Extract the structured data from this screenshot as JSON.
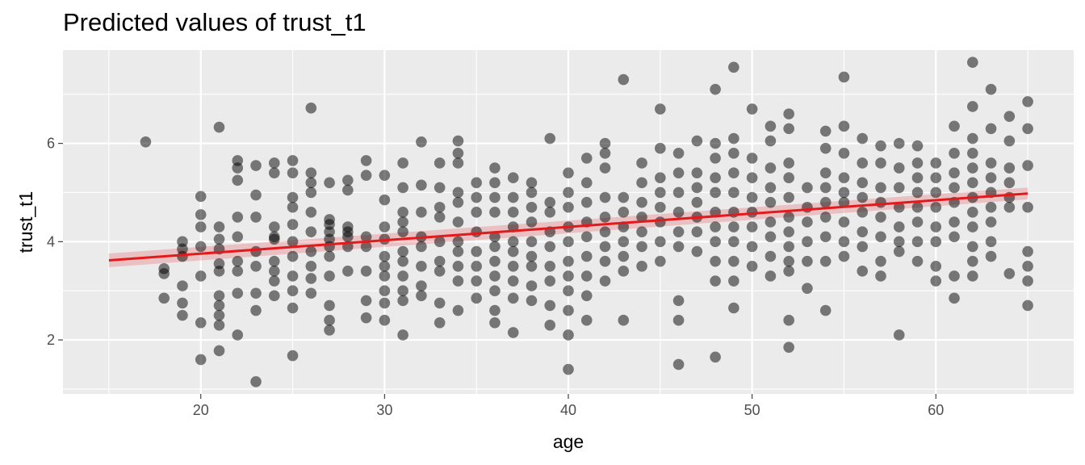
{
  "chart_data": {
    "type": "scatter",
    "title": "Predicted values of trust_t1",
    "xlabel": "age",
    "ylabel": "trust_t1",
    "xlim": [
      12.5,
      67.5
    ],
    "ylim": [
      0.9,
      7.9
    ],
    "x_ticks": [
      20,
      30,
      40,
      50,
      60
    ],
    "y_ticks": [
      2,
      4,
      6
    ],
    "grid": true,
    "background": "#ebebeb",
    "point_color": "#000000",
    "point_opacity": 0.5,
    "fit_line": {
      "color": "#e31a1c",
      "ci_color": "#e31a1c",
      "x": [
        15,
        65
      ],
      "y": [
        3.62,
        4.98
      ],
      "ci_lower": [
        3.48,
        4.86
      ],
      "ci_upper": [
        3.76,
        5.1
      ]
    },
    "points": [
      [
        17,
        6.03
      ],
      [
        18,
        2.85
      ],
      [
        18,
        3.35
      ],
      [
        18,
        3.45
      ],
      [
        19,
        2.5
      ],
      [
        19,
        2.75
      ],
      [
        19,
        3.1
      ],
      [
        19,
        3.7
      ],
      [
        19,
        3.85
      ],
      [
        19,
        4.0
      ],
      [
        20,
        1.6
      ],
      [
        20,
        2.35
      ],
      [
        20,
        3.3
      ],
      [
        20,
        3.9
      ],
      [
        20,
        4.3
      ],
      [
        20,
        4.55
      ],
      [
        20,
        4.92
      ],
      [
        21,
        1.78
      ],
      [
        21,
        2.3
      ],
      [
        21,
        2.5
      ],
      [
        21,
        2.7
      ],
      [
        21,
        2.9
      ],
      [
        21,
        3.4
      ],
      [
        21,
        3.55
      ],
      [
        21,
        3.85
      ],
      [
        21,
        4.05
      ],
      [
        21,
        4.3
      ],
      [
        21,
        6.33
      ],
      [
        22,
        2.1
      ],
      [
        22,
        2.95
      ],
      [
        22,
        3.4
      ],
      [
        22,
        3.6
      ],
      [
        22,
        4.1
      ],
      [
        22,
        4.5
      ],
      [
        22,
        5.25
      ],
      [
        22,
        5.5
      ],
      [
        22,
        5.65
      ],
      [
        23,
        1.15
      ],
      [
        23,
        2.6
      ],
      [
        23,
        2.95
      ],
      [
        23,
        3.5
      ],
      [
        23,
        3.8
      ],
      [
        23,
        4.5
      ],
      [
        23,
        4.95
      ],
      [
        23,
        5.55
      ],
      [
        24,
        2.9
      ],
      [
        24,
        3.2
      ],
      [
        24,
        3.4
      ],
      [
        24,
        3.6
      ],
      [
        24,
        4.05
      ],
      [
        24,
        4.1
      ],
      [
        24,
        4.3
      ],
      [
        24,
        5.4
      ],
      [
        24,
        5.6
      ],
      [
        25,
        1.68
      ],
      [
        25,
        2.65
      ],
      [
        25,
        3.0
      ],
      [
        25,
        3.3
      ],
      [
        25,
        3.7
      ],
      [
        25,
        4.0
      ],
      [
        25,
        4.35
      ],
      [
        25,
        4.7
      ],
      [
        25,
        4.9
      ],
      [
        25,
        5.4
      ],
      [
        25,
        5.65
      ],
      [
        26,
        2.95
      ],
      [
        26,
        3.25
      ],
      [
        26,
        3.5
      ],
      [
        26,
        3.8
      ],
      [
        26,
        4.2
      ],
      [
        26,
        4.6
      ],
      [
        26,
        5.0
      ],
      [
        26,
        5.2
      ],
      [
        26,
        5.4
      ],
      [
        26,
        6.72
      ],
      [
        27,
        2.2
      ],
      [
        27,
        2.4
      ],
      [
        27,
        2.7
      ],
      [
        27,
        3.3
      ],
      [
        27,
        3.7
      ],
      [
        27,
        3.9
      ],
      [
        27,
        4.05
      ],
      [
        27,
        4.2
      ],
      [
        27,
        4.35
      ],
      [
        27,
        4.45
      ],
      [
        27,
        5.2
      ],
      [
        28,
        3.4
      ],
      [
        28,
        3.9
      ],
      [
        28,
        4.1
      ],
      [
        28,
        4.2
      ],
      [
        28,
        4.3
      ],
      [
        28,
        5.05
      ],
      [
        28,
        5.25
      ],
      [
        29,
        2.45
      ],
      [
        29,
        2.8
      ],
      [
        29,
        3.4
      ],
      [
        29,
        3.9
      ],
      [
        29,
        4.1
      ],
      [
        29,
        5.35
      ],
      [
        29,
        5.65
      ],
      [
        30,
        2.4
      ],
      [
        30,
        2.75
      ],
      [
        30,
        3.0
      ],
      [
        30,
        3.3
      ],
      [
        30,
        3.5
      ],
      [
        30,
        3.7
      ],
      [
        30,
        4.05
      ],
      [
        30,
        4.3
      ],
      [
        30,
        4.85
      ],
      [
        30,
        5.35
      ],
      [
        31,
        2.1
      ],
      [
        31,
        2.8
      ],
      [
        31,
        3.0
      ],
      [
        31,
        3.3
      ],
      [
        31,
        3.6
      ],
      [
        31,
        3.8
      ],
      [
        31,
        4.2
      ],
      [
        31,
        4.4
      ],
      [
        31,
        4.6
      ],
      [
        31,
        5.1
      ],
      [
        31,
        5.6
      ],
      [
        32,
        2.9
      ],
      [
        32,
        3.1
      ],
      [
        32,
        3.5
      ],
      [
        32,
        3.9
      ],
      [
        32,
        4.1
      ],
      [
        32,
        4.6
      ],
      [
        32,
        5.15
      ],
      [
        32,
        6.03
      ],
      [
        33,
        2.35
      ],
      [
        33,
        2.75
      ],
      [
        33,
        3.4
      ],
      [
        33,
        3.6
      ],
      [
        33,
        4.0
      ],
      [
        33,
        4.5
      ],
      [
        33,
        4.7
      ],
      [
        33,
        5.1
      ],
      [
        33,
        5.6
      ],
      [
        34,
        2.6
      ],
      [
        34,
        3.2
      ],
      [
        34,
        3.5
      ],
      [
        34,
        3.8
      ],
      [
        34,
        4.0
      ],
      [
        34,
        4.4
      ],
      [
        34,
        4.8
      ],
      [
        34,
        5.0
      ],
      [
        34,
        5.6
      ],
      [
        34,
        5.8
      ],
      [
        34,
        6.05
      ],
      [
        35,
        2.85
      ],
      [
        35,
        3.2
      ],
      [
        35,
        3.5
      ],
      [
        35,
        3.8
      ],
      [
        35,
        4.2
      ],
      [
        35,
        4.6
      ],
      [
        35,
        4.9
      ],
      [
        35,
        5.2
      ],
      [
        36,
        2.35
      ],
      [
        36,
        2.6
      ],
      [
        36,
        3.0
      ],
      [
        36,
        3.3
      ],
      [
        36,
        3.6
      ],
      [
        36,
        3.9
      ],
      [
        36,
        4.1
      ],
      [
        36,
        4.6
      ],
      [
        36,
        4.9
      ],
      [
        36,
        5.2
      ],
      [
        36,
        5.5
      ],
      [
        37,
        2.15
      ],
      [
        37,
        2.85
      ],
      [
        37,
        3.2
      ],
      [
        37,
        3.5
      ],
      [
        37,
        3.8
      ],
      [
        37,
        4.0
      ],
      [
        37,
        4.3
      ],
      [
        37,
        4.6
      ],
      [
        37,
        4.9
      ],
      [
        37,
        5.3
      ],
      [
        38,
        2.8
      ],
      [
        38,
        3.1
      ],
      [
        38,
        3.5
      ],
      [
        38,
        3.7
      ],
      [
        38,
        4.0
      ],
      [
        38,
        4.4
      ],
      [
        38,
        4.7
      ],
      [
        38,
        5.0
      ],
      [
        38,
        5.2
      ],
      [
        39,
        2.3
      ],
      [
        39,
        2.7
      ],
      [
        39,
        3.2
      ],
      [
        39,
        3.5
      ],
      [
        39,
        3.9
      ],
      [
        39,
        4.2
      ],
      [
        39,
        4.6
      ],
      [
        39,
        4.8
      ],
      [
        39,
        6.1
      ],
      [
        40,
        1.4
      ],
      [
        40,
        2.1
      ],
      [
        40,
        2.6
      ],
      [
        40,
        3.0
      ],
      [
        40,
        3.3
      ],
      [
        40,
        3.6
      ],
      [
        40,
        4.0
      ],
      [
        40,
        4.3
      ],
      [
        40,
        4.7
      ],
      [
        40,
        5.0
      ],
      [
        40,
        5.4
      ],
      [
        41,
        2.4
      ],
      [
        41,
        2.9
      ],
      [
        41,
        3.3
      ],
      [
        41,
        3.7
      ],
      [
        41,
        4.1
      ],
      [
        41,
        4.4
      ],
      [
        41,
        4.8
      ],
      [
        41,
        5.2
      ],
      [
        41,
        5.7
      ],
      [
        42,
        3.2
      ],
      [
        42,
        3.6
      ],
      [
        42,
        3.9
      ],
      [
        42,
        4.2
      ],
      [
        42,
        4.5
      ],
      [
        42,
        4.9
      ],
      [
        42,
        5.5
      ],
      [
        42,
        5.8
      ],
      [
        42,
        6.0
      ],
      [
        43,
        2.4
      ],
      [
        43,
        3.4
      ],
      [
        43,
        3.7
      ],
      [
        43,
        4.0
      ],
      [
        43,
        4.3
      ],
      [
        43,
        4.6
      ],
      [
        43,
        4.9
      ],
      [
        43,
        7.3
      ],
      [
        44,
        3.5
      ],
      [
        44,
        3.9
      ],
      [
        44,
        4.2
      ],
      [
        44,
        4.5
      ],
      [
        44,
        4.8
      ],
      [
        44,
        5.2
      ],
      [
        44,
        5.6
      ],
      [
        45,
        3.6
      ],
      [
        45,
        4.0
      ],
      [
        45,
        4.4
      ],
      [
        45,
        4.7
      ],
      [
        45,
        5.0
      ],
      [
        45,
        5.3
      ],
      [
        45,
        5.9
      ],
      [
        45,
        6.7
      ],
      [
        46,
        1.5
      ],
      [
        46,
        2.4
      ],
      [
        46,
        2.8
      ],
      [
        46,
        3.9
      ],
      [
        46,
        4.2
      ],
      [
        46,
        4.6
      ],
      [
        46,
        5.0
      ],
      [
        46,
        5.4
      ],
      [
        46,
        5.8
      ],
      [
        47,
        3.8
      ],
      [
        47,
        4.2
      ],
      [
        47,
        4.5
      ],
      [
        47,
        4.8
      ],
      [
        47,
        5.1
      ],
      [
        47,
        5.4
      ],
      [
        47,
        6.05
      ],
      [
        48,
        1.65
      ],
      [
        48,
        3.2
      ],
      [
        48,
        3.6
      ],
      [
        48,
        4.0
      ],
      [
        48,
        4.3
      ],
      [
        48,
        4.6
      ],
      [
        48,
        5.0
      ],
      [
        48,
        5.3
      ],
      [
        48,
        5.7
      ],
      [
        48,
        6.0
      ],
      [
        48,
        7.1
      ],
      [
        49,
        2.65
      ],
      [
        49,
        3.2
      ],
      [
        49,
        3.6
      ],
      [
        49,
        4.0
      ],
      [
        49,
        4.3
      ],
      [
        49,
        4.6
      ],
      [
        49,
        5.0
      ],
      [
        49,
        5.4
      ],
      [
        49,
        5.8
      ],
      [
        49,
        6.1
      ],
      [
        49,
        7.55
      ],
      [
        50,
        3.5
      ],
      [
        50,
        3.9
      ],
      [
        50,
        4.3
      ],
      [
        50,
        4.6
      ],
      [
        50,
        4.9
      ],
      [
        50,
        5.3
      ],
      [
        50,
        5.7
      ],
      [
        50,
        6.7
      ],
      [
        51,
        3.3
      ],
      [
        51,
        3.7
      ],
      [
        51,
        4.1
      ],
      [
        51,
        4.4
      ],
      [
        51,
        4.8
      ],
      [
        51,
        5.1
      ],
      [
        51,
        5.5
      ],
      [
        51,
        6.05
      ],
      [
        51,
        6.35
      ],
      [
        52,
        1.85
      ],
      [
        52,
        2.4
      ],
      [
        52,
        3.4
      ],
      [
        52,
        3.6
      ],
      [
        52,
        3.9
      ],
      [
        52,
        4.2
      ],
      [
        52,
        4.5
      ],
      [
        52,
        4.9
      ],
      [
        52,
        5.3
      ],
      [
        52,
        5.6
      ],
      [
        52,
        6.3
      ],
      [
        52,
        6.6
      ],
      [
        53,
        3.05
      ],
      [
        53,
        3.6
      ],
      [
        53,
        4.0
      ],
      [
        53,
        4.4
      ],
      [
        53,
        4.7
      ],
      [
        53,
        5.1
      ],
      [
        54,
        2.6
      ],
      [
        54,
        3.6
      ],
      [
        54,
        4.1
      ],
      [
        54,
        4.5
      ],
      [
        54,
        4.8
      ],
      [
        54,
        5.1
      ],
      [
        54,
        5.4
      ],
      [
        54,
        5.9
      ],
      [
        54,
        6.25
      ],
      [
        55,
        3.7
      ],
      [
        55,
        4.0
      ],
      [
        55,
        4.4
      ],
      [
        55,
        4.8
      ],
      [
        55,
        5.0
      ],
      [
        55,
        5.3
      ],
      [
        55,
        5.8
      ],
      [
        55,
        6.35
      ],
      [
        55,
        7.35
      ],
      [
        56,
        3.4
      ],
      [
        56,
        3.9
      ],
      [
        56,
        4.2
      ],
      [
        56,
        4.6
      ],
      [
        56,
        4.9
      ],
      [
        56,
        5.2
      ],
      [
        56,
        5.6
      ],
      [
        56,
        6.1
      ],
      [
        57,
        3.3
      ],
      [
        57,
        3.6
      ],
      [
        57,
        4.1
      ],
      [
        57,
        4.5
      ],
      [
        57,
        4.8
      ],
      [
        57,
        5.1
      ],
      [
        57,
        5.6
      ],
      [
        57,
        5.95
      ],
      [
        58,
        2.1
      ],
      [
        58,
        3.8
      ],
      [
        58,
        4.0
      ],
      [
        58,
        4.3
      ],
      [
        58,
        4.7
      ],
      [
        58,
        5.1
      ],
      [
        58,
        5.5
      ],
      [
        58,
        6.0
      ],
      [
        59,
        3.6
      ],
      [
        59,
        4.0
      ],
      [
        59,
        4.4
      ],
      [
        59,
        4.7
      ],
      [
        59,
        5.0
      ],
      [
        59,
        5.3
      ],
      [
        59,
        5.6
      ],
      [
        59,
        5.95
      ],
      [
        60,
        3.2
      ],
      [
        60,
        3.5
      ],
      [
        60,
        4.0
      ],
      [
        60,
        4.3
      ],
      [
        60,
        4.7
      ],
      [
        60,
        5.0
      ],
      [
        60,
        5.3
      ],
      [
        60,
        5.6
      ],
      [
        61,
        2.85
      ],
      [
        61,
        3.3
      ],
      [
        61,
        4.1
      ],
      [
        61,
        4.4
      ],
      [
        61,
        4.8
      ],
      [
        61,
        5.1
      ],
      [
        61,
        5.4
      ],
      [
        61,
        5.8
      ],
      [
        61,
        6.35
      ],
      [
        62,
        3.3
      ],
      [
        62,
        3.6
      ],
      [
        62,
        3.9
      ],
      [
        62,
        4.3
      ],
      [
        62,
        4.6
      ],
      [
        62,
        4.9
      ],
      [
        62,
        5.2
      ],
      [
        62,
        5.5
      ],
      [
        62,
        5.8
      ],
      [
        62,
        6.1
      ],
      [
        62,
        6.75
      ],
      [
        62,
        7.65
      ],
      [
        63,
        3.7
      ],
      [
        63,
        4.0
      ],
      [
        63,
        4.4
      ],
      [
        63,
        4.7
      ],
      [
        63,
        5.0
      ],
      [
        63,
        5.3
      ],
      [
        63,
        5.6
      ],
      [
        63,
        6.3
      ],
      [
        63,
        7.1
      ],
      [
        64,
        3.35
      ],
      [
        64,
        4.7
      ],
      [
        64,
        4.9
      ],
      [
        64,
        5.2
      ],
      [
        64,
        5.5
      ],
      [
        64,
        6.05
      ],
      [
        64,
        6.55
      ],
      [
        65,
        2.7
      ],
      [
        65,
        3.2
      ],
      [
        65,
        3.5
      ],
      [
        65,
        3.8
      ],
      [
        65,
        4.7
      ],
      [
        65,
        5.55
      ],
      [
        65,
        6.3
      ],
      [
        65,
        6.85
      ]
    ]
  }
}
